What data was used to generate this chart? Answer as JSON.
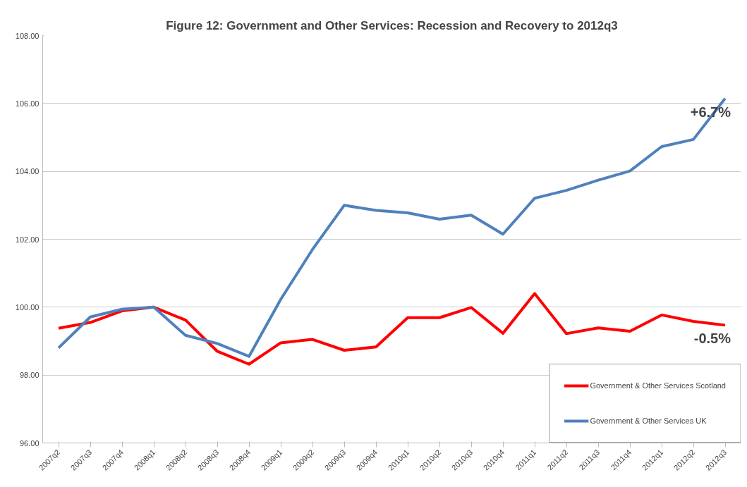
{
  "chart_data": {
    "type": "line",
    "title": "Figure 12: Government and Other Services: Recession and Recovery to 2012q3",
    "categories": [
      "2007q2",
      "2007q3",
      "2007q4",
      "2008q1",
      "2008q2",
      "2008q3",
      "2008q4",
      "2009q1",
      "2009q2",
      "2009q3",
      "2009q4",
      "2010q1",
      "2010q2",
      "2010q3",
      "2010q4",
      "2011q1",
      "2011q2",
      "2011q3",
      "2011q4",
      "2012q1",
      "2012q2",
      "2012q3"
    ],
    "series": [
      {
        "name": "Government & Other Services Scotland",
        "color": "#ff0000",
        "values": [
          99.38,
          99.55,
          99.89,
          100.0,
          99.62,
          98.7,
          98.32,
          98.95,
          99.05,
          98.73,
          98.83,
          99.69,
          99.69,
          99.99,
          99.23,
          100.4,
          99.22,
          99.39,
          99.29,
          99.77,
          99.58,
          99.47
        ]
      },
      {
        "name": "Government & Other Services UK",
        "color": "#4f81bd",
        "values": [
          98.8,
          99.71,
          99.94,
          100.0,
          99.17,
          98.93,
          98.55,
          100.23,
          101.7,
          103.0,
          102.85,
          102.78,
          102.59,
          102.71,
          102.15,
          103.21,
          103.44,
          103.74,
          104.01,
          104.73,
          104.94,
          106.15
        ]
      }
    ],
    "ylim": [
      96,
      108
    ],
    "yticks": [
      {
        "value": 96,
        "label": "96.00"
      },
      {
        "value": 98,
        "label": "98.00"
      },
      {
        "value": 100,
        "label": "100.00"
      },
      {
        "value": 102,
        "label": "102.00"
      },
      {
        "value": 104,
        "label": "104.00"
      },
      {
        "value": 106,
        "label": "106.00"
      },
      {
        "value": 108,
        "label": "108.00"
      }
    ],
    "grid": "y",
    "legend": "bottom right",
    "marker": "none",
    "line_style": "solid",
    "annotations": [
      "+6.7%",
      "-0.5%"
    ]
  }
}
